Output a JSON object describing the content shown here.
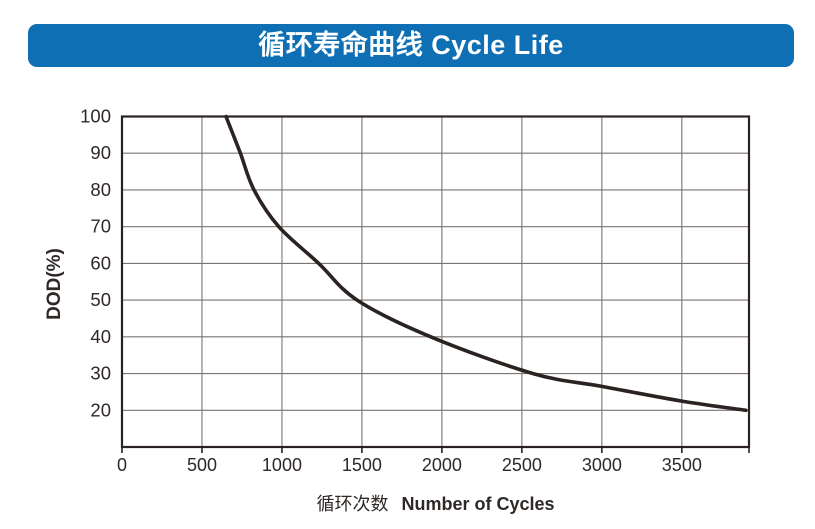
{
  "header": {
    "title": "循环寿命曲线 Cycle Life",
    "bg_color": "#0f6fb4",
    "text_color": "#ffffff"
  },
  "chart_data": {
    "type": "line",
    "title": "循环寿命曲线 Cycle Life",
    "ylabel": "DOD(%)",
    "xlabel_cn": "循环次数",
    "xlabel_en": "Number of Cycles",
    "x_ticks": [
      0,
      500,
      1000,
      1500,
      2000,
      2500,
      3000,
      3500
    ],
    "y_ticks": [
      100,
      90,
      80,
      70,
      60,
      50,
      40,
      30,
      20
    ],
    "xlim": [
      0,
      3920
    ],
    "ylim": [
      10,
      100
    ],
    "grid": true,
    "legend": "none",
    "grid_color": "#7b7472",
    "axis_color": "#2a2321",
    "tick_label_color": "#2e2926",
    "series": [
      {
        "name": "cycle-life-curve",
        "color": "#2a2321",
        "points": [
          [
            650,
            100
          ],
          [
            740,
            90
          ],
          [
            825,
            80
          ],
          [
            980,
            70
          ],
          [
            1230,
            60
          ],
          [
            1470,
            50
          ],
          [
            1930,
            40
          ],
          [
            2570,
            30
          ],
          [
            3000,
            26.5
          ],
          [
            3500,
            22.5
          ],
          [
            3900,
            20
          ]
        ]
      }
    ]
  }
}
